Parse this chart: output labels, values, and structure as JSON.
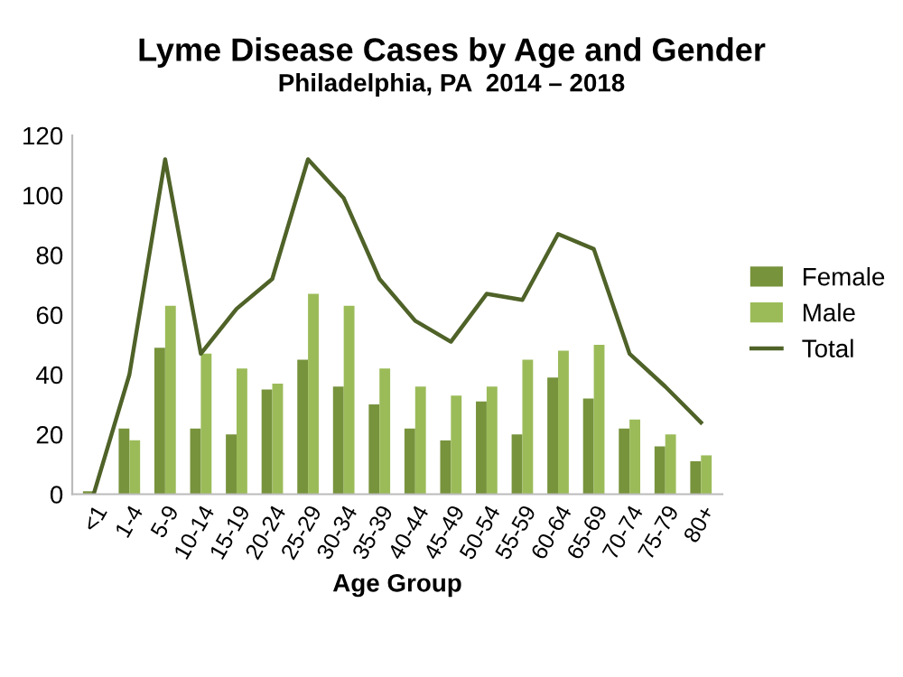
{
  "chart_data": {
    "type": "bar",
    "title": "Lyme Disease Cases by Age and Gender",
    "subtitle": "Philadelphia, PA  2014 – 2018",
    "xlabel": "Age Group",
    "categories": [
      "<1",
      "1-4",
      "5-9",
      "10-14",
      "15-19",
      "20-24",
      "25-29",
      "30-34",
      "35-39",
      "40-44",
      "45-49",
      "50-54",
      "55-59",
      "60-64",
      "65-69",
      "70-74",
      "75-79",
      "80+"
    ],
    "series": [
      {
        "name": "Female",
        "color": "#77933c",
        "values": [
          1,
          22,
          49,
          22,
          20,
          35,
          45,
          36,
          30,
          22,
          18,
          31,
          20,
          39,
          32,
          22,
          16,
          11
        ]
      },
      {
        "name": "Male",
        "color": "#9bbb59",
        "values": [
          0,
          18,
          63,
          47,
          42,
          37,
          67,
          63,
          42,
          36,
          33,
          36,
          45,
          48,
          50,
          25,
          20,
          13
        ]
      },
      {
        "name": "Total",
        "type": "line",
        "color": "#4f6228",
        "values": [
          0,
          40,
          112,
          47,
          62,
          72,
          112,
          99,
          72,
          58,
          51,
          67,
          65,
          87,
          82,
          47,
          36,
          24
        ]
      }
    ],
    "ylim": [
      0,
      120
    ],
    "yticks": [
      0,
      20,
      40,
      60,
      80,
      100,
      120
    ],
    "grid": false,
    "legend": "right",
    "marker": "none",
    "line_style": "solid"
  }
}
